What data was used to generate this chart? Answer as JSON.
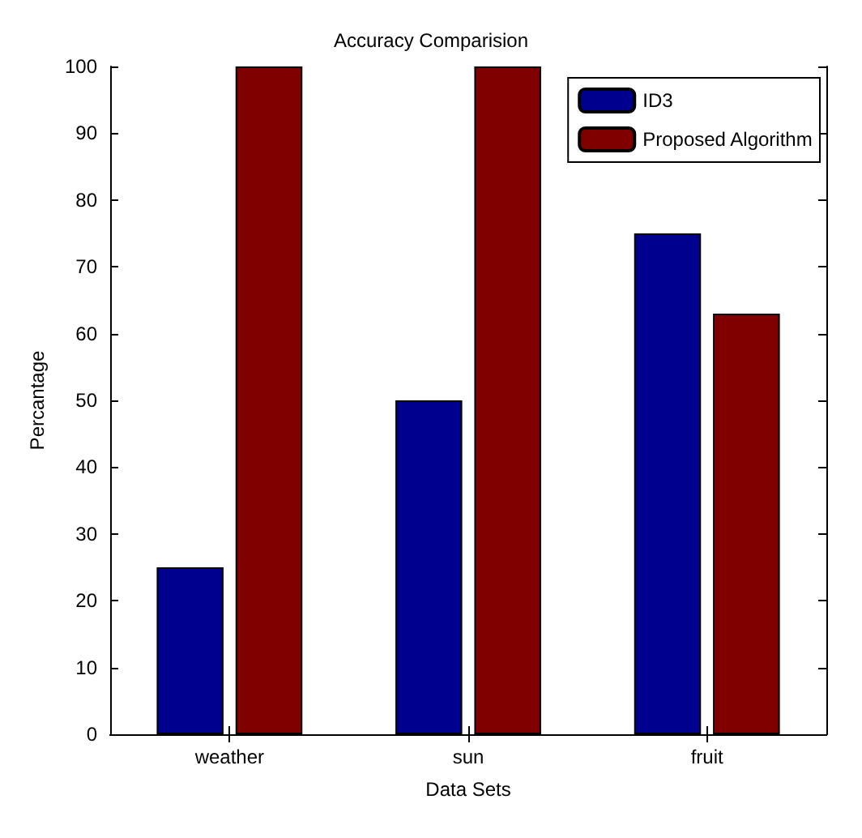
{
  "chart_data": {
    "type": "bar",
    "title": "Accuracy Comparision",
    "xlabel": "Data Sets",
    "ylabel": "Percantage",
    "categories": [
      "weather",
      "sun",
      "fruit"
    ],
    "series": [
      {
        "name": "ID3",
        "color": "#00008f",
        "values": [
          25,
          50,
          75
        ]
      },
      {
        "name": "Proposed Algorithm",
        "color": "#800000",
        "values": [
          100,
          100,
          63
        ]
      }
    ],
    "ylim": [
      0,
      100
    ],
    "yticks": [
      0,
      10,
      20,
      30,
      40,
      50,
      60,
      70,
      80,
      90,
      100
    ],
    "grid": false,
    "legend": "top right"
  }
}
